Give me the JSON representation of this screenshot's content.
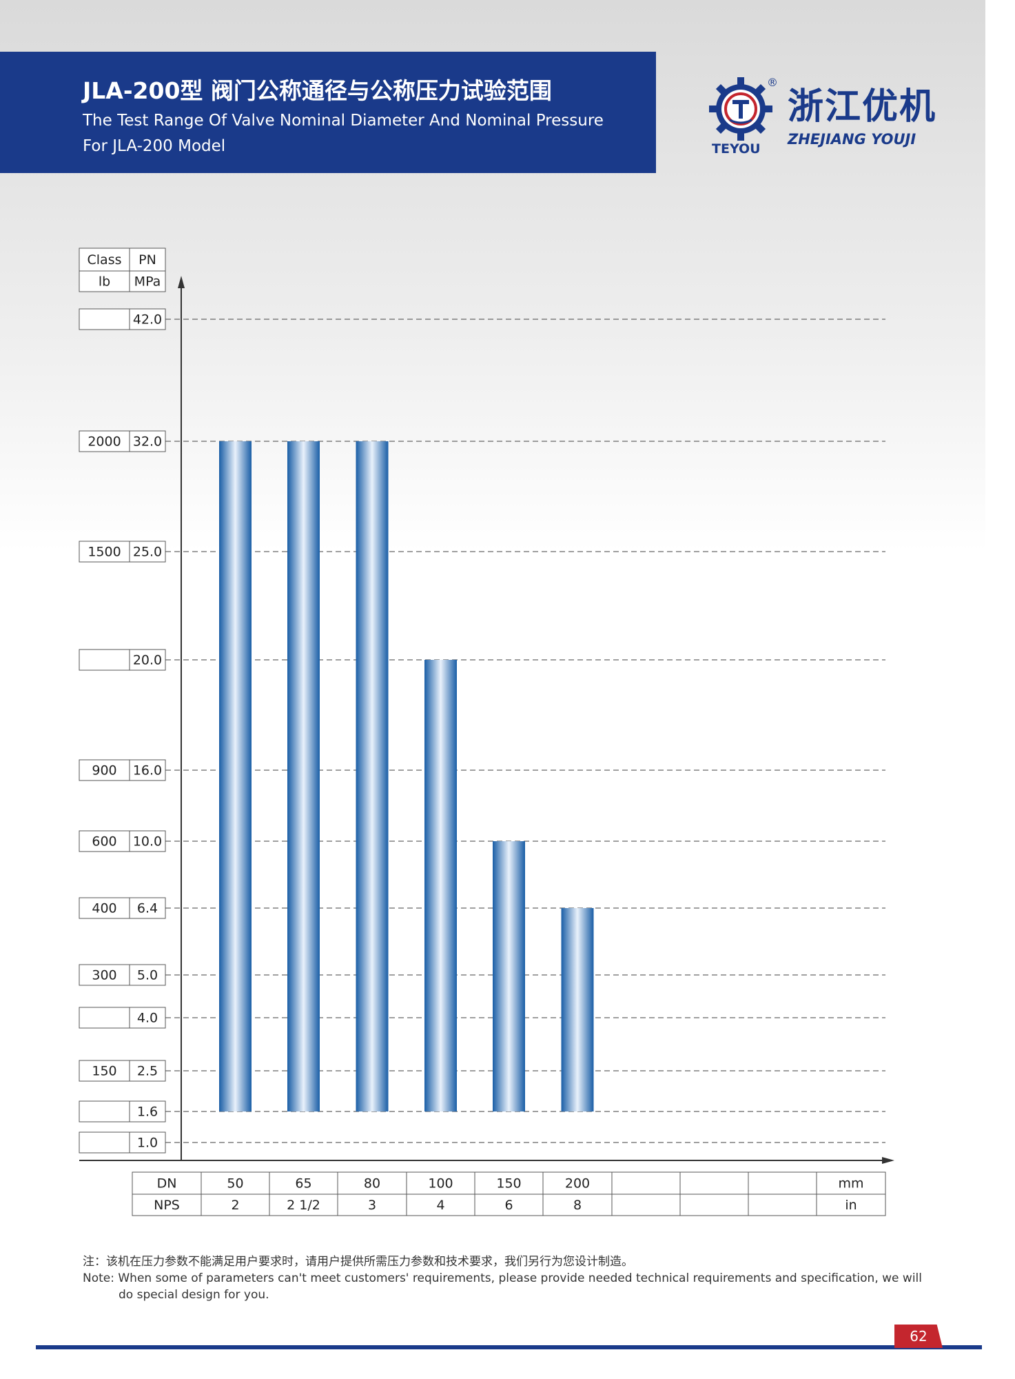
{
  "header": {
    "title_cn": "JLA-200型 阀门公称通径与公称压力试验范围",
    "title_en": "The Test Range Of Valve Nominal Diameter And Nominal Pressure For JLA-200 Model"
  },
  "logo": {
    "brand_cn": "浙江优机",
    "brand_en": "ZHEJIANG YOUJI",
    "sub": "TEYOU",
    "reg": "®"
  },
  "chart_data": {
    "type": "bar",
    "y_header": [
      [
        "Class",
        "PN"
      ],
      [
        "lb",
        "MPa"
      ]
    ],
    "y_rows": [
      {
        "class": "",
        "pn": "42.0"
      },
      {
        "class": "2000",
        "pn": "32.0"
      },
      {
        "class": "1500",
        "pn": "25.0"
      },
      {
        "class": "",
        "pn": "20.0"
      },
      {
        "class": "900",
        "pn": "16.0"
      },
      {
        "class": "600",
        "pn": "10.0"
      },
      {
        "class": "400",
        "pn": "6.4"
      },
      {
        "class": "300",
        "pn": "5.0"
      },
      {
        "class": "",
        "pn": "4.0"
      },
      {
        "class": "150",
        "pn": "2.5"
      },
      {
        "class": "",
        "pn": "1.6"
      },
      {
        "class": "",
        "pn": "1.0"
      }
    ],
    "x_table": {
      "dn_label": "DN",
      "nps_label": "NPS",
      "dn": [
        "50",
        "65",
        "80",
        "100",
        "150",
        "200",
        "",
        "",
        ""
      ],
      "nps": [
        "2",
        "2 1/2",
        "3",
        "4",
        "6",
        "8",
        "",
        "",
        ""
      ],
      "dn_unit": "mm",
      "nps_unit": "in"
    },
    "bars": [
      {
        "dn": "50",
        "min": 1.6,
        "max": 32.0
      },
      {
        "dn": "65",
        "min": 1.6,
        "max": 32.0
      },
      {
        "dn": "80",
        "min": 1.6,
        "max": 32.0
      },
      {
        "dn": "100",
        "min": 1.6,
        "max": 20.0
      },
      {
        "dn": "150",
        "min": 1.6,
        "max": 10.0
      },
      {
        "dn": "200",
        "min": 1.6,
        "max": 6.4
      }
    ],
    "grid": "dashed",
    "bar_color": "#1a5ea6"
  },
  "note": {
    "cn": "注：该机在压力参数不能满足用户要求时，请用户提供所需压力参数和技术要求，我们另行为您设计制造。",
    "en": "Note: When some of parameters can't meet customers' requirements, please provide needed technical requirements and specification, we will do special design for you."
  },
  "page_number": "62"
}
